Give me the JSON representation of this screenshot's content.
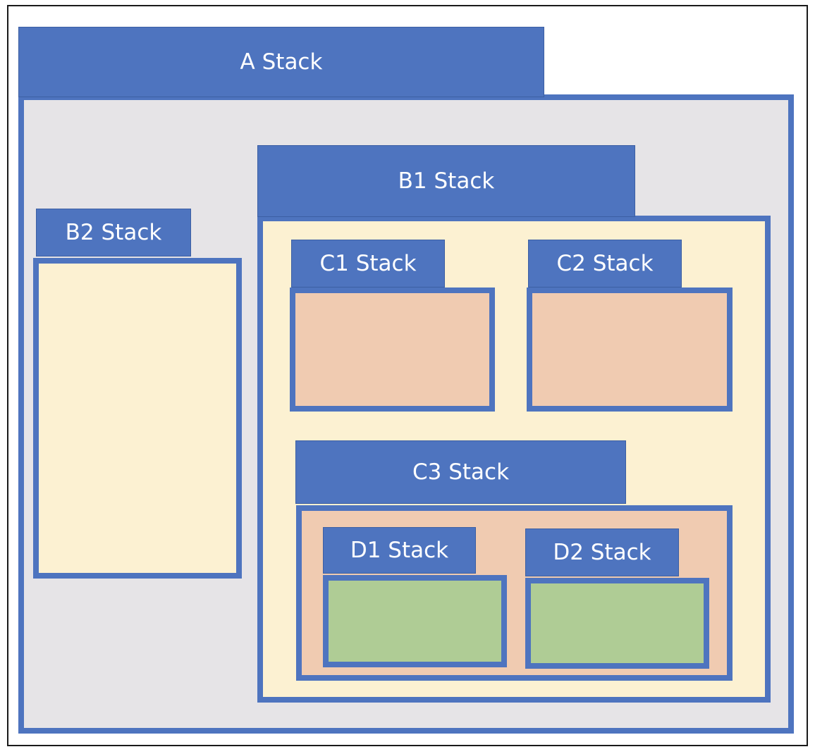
{
  "stacks": {
    "a": {
      "label": "A Stack"
    },
    "b1": {
      "label": "B1 Stack"
    },
    "b2": {
      "label": "B2 Stack"
    },
    "c1": {
      "label": "C1 Stack"
    },
    "c2": {
      "label": "C2 Stack"
    },
    "c3": {
      "label": "C3 Stack"
    },
    "d1": {
      "label": "D1 Stack"
    },
    "d2": {
      "label": "D2 Stack"
    }
  },
  "colors": {
    "header": "#4e74bf",
    "a_body": "#e6e4e7",
    "b_body": "#fcf1d2",
    "c_body": "#f0cbb1",
    "d_body": "#afcc95"
  }
}
